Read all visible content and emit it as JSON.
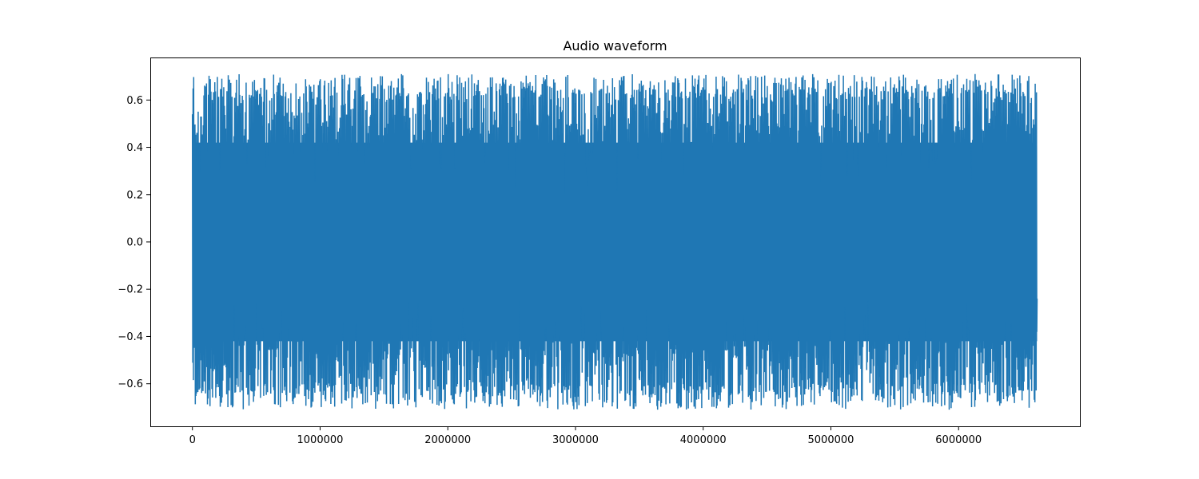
{
  "chart_data": {
    "type": "line",
    "title": "Audio waveform",
    "xlabel": "",
    "ylabel": "",
    "xlim": [
      -330000,
      6950000
    ],
    "ylim": [
      -0.78,
      0.78
    ],
    "x_ticks": [
      0,
      1000000,
      2000000,
      3000000,
      4000000,
      5000000,
      6000000
    ],
    "x_tick_labels": [
      "0",
      "1000000",
      "2000000",
      "3000000",
      "4000000",
      "5000000",
      "6000000"
    ],
    "y_ticks": [
      -0.6,
      -0.4,
      -0.2,
      0.0,
      0.2,
      0.4,
      0.6
    ],
    "y_tick_labels": [
      "−0.6",
      "−0.4",
      "−0.2",
      "0.0",
      "0.2",
      "0.4",
      "0.6"
    ],
    "grid": false,
    "legend": false,
    "series": [
      {
        "color": "#1f77b4",
        "x_start": 0,
        "x_end": 6615000,
        "envelope_max": 0.71,
        "envelope_min": -0.71,
        "first_value": 0.54,
        "last_value": -0.24
      }
    ]
  }
}
